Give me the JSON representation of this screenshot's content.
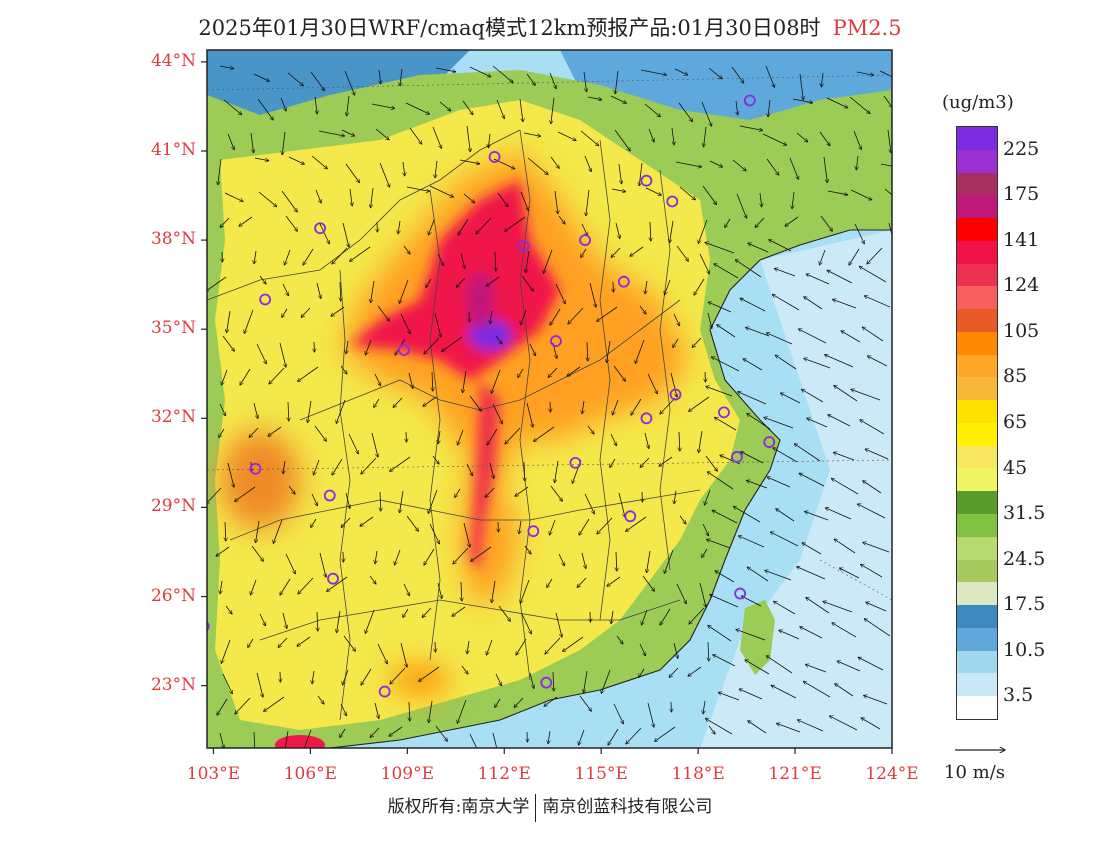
{
  "title": {
    "text": "2025年01月30日WRF/cmaq模式12km预报产品:01月30日08时",
    "pollutant": "PM2.5",
    "pollutant_color": "#e23b3b"
  },
  "map": {
    "projection": "lat-lon",
    "lon_range": [
      102.8,
      124
    ],
    "lat_range": [
      20.9,
      44.4
    ],
    "lat_ticks": [
      {
        "value": 44,
        "label": "44°N"
      },
      {
        "value": 41,
        "label": "41°N"
      },
      {
        "value": 38,
        "label": "38°N"
      },
      {
        "value": 35,
        "label": "35°N"
      },
      {
        "value": 32,
        "label": "32°N"
      },
      {
        "value": 29,
        "label": "29°N"
      },
      {
        "value": 26,
        "label": "26°N"
      },
      {
        "value": 23,
        "label": "23°N"
      }
    ],
    "lon_ticks": [
      {
        "value": 103,
        "label": "103°E"
      },
      {
        "value": 106,
        "label": "106°E"
      },
      {
        "value": 109,
        "label": "109°E"
      },
      {
        "value": 112,
        "label": "112°E"
      },
      {
        "value": 115,
        "label": "115°E"
      },
      {
        "value": 118,
        "label": "118°E"
      },
      {
        "value": 121,
        "label": "121°E"
      },
      {
        "value": 124,
        "label": "124°E"
      }
    ],
    "city_markers": [
      {
        "lon": 119.6,
        "lat": 42.7
      },
      {
        "lon": 111.7,
        "lat": 40.8
      },
      {
        "lon": 116.4,
        "lat": 40.0
      },
      {
        "lon": 117.2,
        "lat": 39.3
      },
      {
        "lon": 106.3,
        "lat": 38.4
      },
      {
        "lon": 112.6,
        "lat": 37.8
      },
      {
        "lon": 114.5,
        "lat": 38.0
      },
      {
        "lon": 115.7,
        "lat": 36.6
      },
      {
        "lon": 104.6,
        "lat": 36.0
      },
      {
        "lon": 113.6,
        "lat": 34.6
      },
      {
        "lon": 108.9,
        "lat": 34.3
      },
      {
        "lon": 117.3,
        "lat": 32.8
      },
      {
        "lon": 118.8,
        "lat": 32.2
      },
      {
        "lon": 116.4,
        "lat": 32.0
      },
      {
        "lon": 120.2,
        "lat": 31.2
      },
      {
        "lon": 119.2,
        "lat": 30.7
      },
      {
        "lon": 104.3,
        "lat": 30.3
      },
      {
        "lon": 114.2,
        "lat": 30.5
      },
      {
        "lon": 106.6,
        "lat": 29.4
      },
      {
        "lon": 115.9,
        "lat": 28.7
      },
      {
        "lon": 112.9,
        "lat": 28.2
      },
      {
        "lon": 119.3,
        "lat": 26.1
      },
      {
        "lon": 106.7,
        "lat": 26.6
      },
      {
        "lon": 102.7,
        "lat": 25.0
      },
      {
        "lon": 108.3,
        "lat": 22.8
      },
      {
        "lon": 113.3,
        "lat": 23.1
      }
    ],
    "colors": {
      "sea": "#a9dff4",
      "land_base": "#f4e84a",
      "border": "#333333",
      "marker": "#8a2be2"
    }
  },
  "legend": {
    "unit": "(ug/m3)",
    "bins": [
      {
        "color": "#7b2be2"
      },
      {
        "color": "#9b30d0"
      },
      {
        "color": "#a83060"
      },
      {
        "color": "#c0187a"
      },
      {
        "color": "#ff0000"
      },
      {
        "color": "#f0104a"
      },
      {
        "color": "#f03050"
      },
      {
        "color": "#f86060"
      },
      {
        "color": "#ea5a28"
      },
      {
        "color": "#ff8a00"
      },
      {
        "color": "#ffa828"
      },
      {
        "color": "#f7b83a"
      },
      {
        "color": "#ffe000"
      },
      {
        "color": "#fff000"
      },
      {
        "color": "#f7e660"
      },
      {
        "color": "#eef560"
      },
      {
        "color": "#5a9a2a"
      },
      {
        "color": "#82c040"
      },
      {
        "color": "#b8d870"
      },
      {
        "color": "#a8c860"
      },
      {
        "color": "#dce8c0"
      },
      {
        "color": "#3e88c0"
      },
      {
        "color": "#60a8dc"
      },
      {
        "color": "#a0d8f0"
      },
      {
        "color": "#c8e8f8"
      },
      {
        "color": "#ffffff"
      }
    ],
    "labels": [
      "225",
      "175",
      "141",
      "124",
      "105",
      "85",
      "65",
      "45",
      "31.5",
      "24.5",
      "17.5",
      "10.5",
      "3.5"
    ],
    "label_bin_boundaries": [
      2,
      4,
      6,
      8,
      10,
      12,
      14,
      16,
      18,
      20,
      22,
      24,
      26
    ]
  },
  "wind": {
    "reference_label": "10 m/s"
  },
  "footer": {
    "left": "版权所有:南京大学",
    "right": "南京创蓝科技有限公司"
  }
}
